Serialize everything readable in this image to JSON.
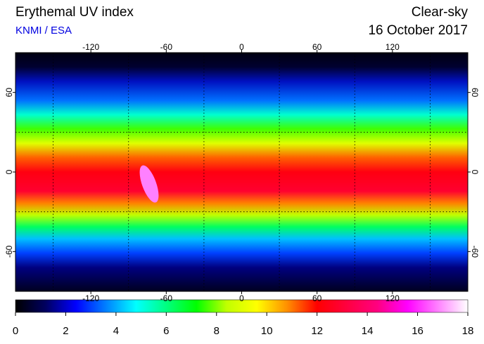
{
  "header": {
    "title": "Erythemal UV index",
    "source": "KNMI / ESA",
    "product": "Clear-sky",
    "date": "16 October 2017"
  },
  "map": {
    "lonlim": [
      -180,
      180
    ],
    "latlim": [
      -90,
      90
    ],
    "lonticks": [
      -120,
      -60,
      0,
      60,
      120
    ],
    "latticks": [
      -60,
      0,
      60
    ],
    "grid_lons": [
      -150,
      -90,
      -30,
      30,
      90,
      150
    ],
    "grid_lats": [
      -30,
      30
    ]
  },
  "colorbar": {
    "lim": [
      0,
      18
    ],
    "ticks": [
      0,
      2,
      4,
      6,
      8,
      10,
      12,
      14,
      16,
      18
    ],
    "colors": [
      "#000000",
      "#000060",
      "#0000ff",
      "#0080ff",
      "#00ffff",
      "#00ff80",
      "#00ff00",
      "#c0ff00",
      "#ffff00",
      "#ff9000",
      "#ff0000",
      "#ff0040",
      "#ff0080",
      "#ff00ff",
      "#ff80ff",
      "#ffffff"
    ]
  }
}
